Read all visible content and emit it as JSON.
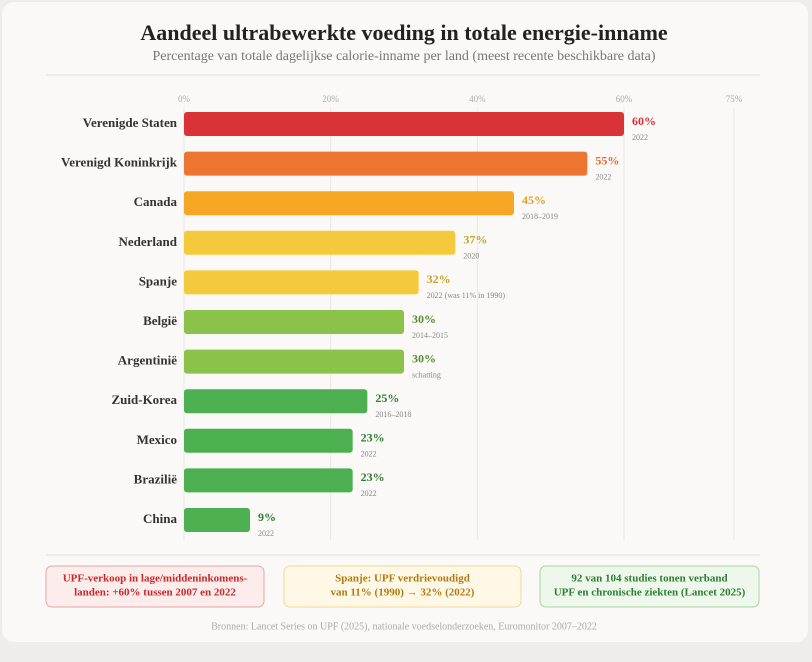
{
  "chart_data": {
    "type": "bar",
    "orientation": "horizontal",
    "title": "Aandeel ultrabewerkte voeding in totale energie-inname",
    "subtitle": "Percentage van totale dagelijkse calorie-inname per land (meest recente beschikbare data)",
    "categories": [
      "Verenigde Staten",
      "Verenigd Koninkrijk",
      "Canada",
      "Nederland",
      "Spanje",
      "België",
      "Argentinië",
      "Zuid-Korea",
      "Mexico",
      "Brazilië",
      "China"
    ],
    "values": [
      60,
      55,
      45,
      37,
      32,
      30,
      30,
      25,
      23,
      23,
      9
    ],
    "value_labels": [
      "60%",
      "55%",
      "45%",
      "37%",
      "32%",
      "30%",
      "30%",
      "25%",
      "23%",
      "23%",
      "9%"
    ],
    "notes": [
      "2022",
      "2022",
      "2018–2019",
      "2020",
      "2022 (was 11% in 1990)",
      "2014–2015",
      "schatting",
      "2016–2018",
      "2022",
      "2022",
      "2022"
    ],
    "colors": [
      "#d93237",
      "#ec7532",
      "#f5a623",
      "#f5c93c",
      "#f5c93c",
      "#8bc34a",
      "#8bc34a",
      "#4caf50",
      "#4caf50",
      "#4caf50",
      "#4caf50"
    ],
    "label_colors": [
      "#d32f2f",
      "#e06a2a",
      "#e8a020",
      "#c9a227",
      "#c9a227",
      "#558b2f",
      "#558b2f",
      "#2e7d32",
      "#2e7d32",
      "#2e7d32",
      "#2e7d32"
    ],
    "xlim": [
      0,
      75
    ],
    "xticks": [
      {
        "value": 0,
        "label": "0%"
      },
      {
        "value": 20,
        "label": "20%"
      },
      {
        "value": 40,
        "label": "40%"
      },
      {
        "value": 60,
        "label": "60%"
      },
      {
        "value": 75,
        "label": "75%"
      }
    ],
    "grid": true,
    "callouts": [
      {
        "lines": [
          "UPF-verkoop in lage/middeninkomens-",
          "landen: +60% tussen 2007 en 2022"
        ],
        "color": "#c62828",
        "background": "#fdecec",
        "border": "#e8a3a3"
      },
      {
        "lines": [
          "Spanje: UPF verdrievoudigd",
          "van 11% (1990) → 32% (2022)"
        ],
        "color": "#b07a10",
        "background": "#fff8e6",
        "border": "#f0d890"
      },
      {
        "lines": [
          "92 van 104 studies tonen verband",
          "UPF en chronische ziekten (Lancet 2025)"
        ],
        "color": "#2e7d32",
        "background": "#eef7ec",
        "border": "#a8d5a0"
      }
    ],
    "source": "Bronnen: Lancet Series on UPF (2025), nationale voedselonderzoeken, Euromonitor 2007–2022"
  }
}
